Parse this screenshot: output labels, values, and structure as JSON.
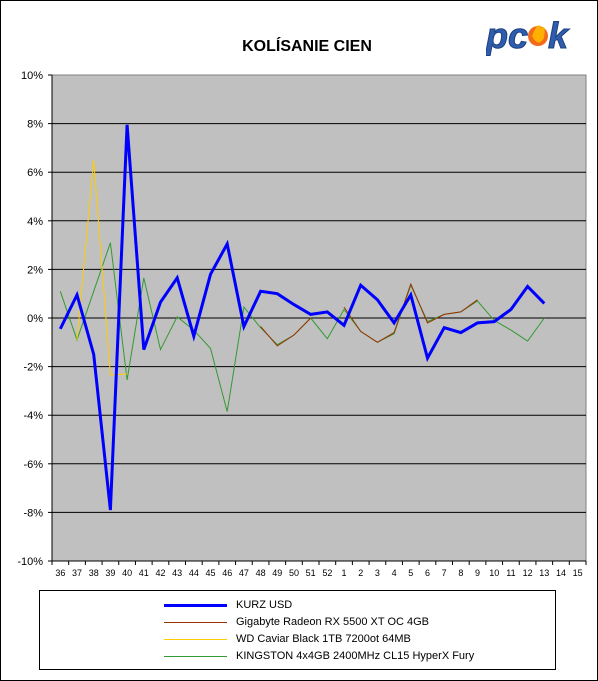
{
  "chart_data": {
    "type": "line",
    "title": "KOLÍSANIE CIEN",
    "ylim": [
      -10,
      10
    ],
    "yticks": [
      "10%",
      "8%",
      "6%",
      "4%",
      "2%",
      "0%",
      "-2%",
      "-4%",
      "-6%",
      "-8%",
      "-10%"
    ],
    "ytick_values": [
      10,
      8,
      6,
      4,
      2,
      0,
      -2,
      -4,
      -6,
      -8,
      -10
    ],
    "categories": [
      "36",
      "37",
      "38",
      "39",
      "40",
      "41",
      "42",
      "43",
      "44",
      "45",
      "46",
      "47",
      "48",
      "49",
      "50",
      "51",
      "52",
      "1",
      "2",
      "3",
      "4",
      "5",
      "6",
      "7",
      "8",
      "9",
      "10",
      "11",
      "12",
      "13",
      "14",
      "15"
    ],
    "grid": "horizontal",
    "legend_position": "bottom",
    "series": [
      {
        "name": "KURZ USD",
        "color": "#0000ff",
        "values": [
          -0.45,
          0.95,
          -1.5,
          -7.9,
          7.95,
          -1.3,
          0.65,
          1.65,
          -0.75,
          1.8,
          3.05,
          -0.35,
          1.1,
          1.0,
          0.55,
          0.15,
          0.25,
          -0.3,
          1.35,
          0.75,
          -0.2,
          0.95,
          -1.65,
          -0.4,
          -0.6,
          -0.2,
          -0.15,
          0.35,
          1.3,
          0.6,
          null,
          null
        ]
      },
      {
        "name": "Gigabyte Radeon RX 5500 XT OC 4GB",
        "color": "#993300",
        "values": [
          null,
          null,
          null,
          null,
          null,
          null,
          null,
          null,
          null,
          null,
          null,
          null,
          -0.35,
          -1.15,
          -0.7,
          0.0,
          null,
          0.45,
          -0.55,
          -1.0,
          -0.6,
          1.4,
          -0.2,
          0.15,
          0.25,
          0.75,
          null,
          null,
          null,
          null,
          null,
          null
        ]
      },
      {
        "name": "WD Caviar Black 1TB 7200ot 64MB",
        "color": "#ffcc00",
        "values": [
          null,
          -0.9,
          6.5,
          -2.35,
          -2.3,
          null,
          null,
          null,
          null,
          null,
          null,
          null,
          null,
          null,
          null,
          null,
          null,
          null,
          null,
          null,
          null,
          null,
          null,
          null,
          null,
          null,
          null,
          null,
          null,
          null,
          null,
          null
        ]
      },
      {
        "name": "KINGSTON 4x4GB 2400MHz CL15 HyperX Fury",
        "color": "#339933",
        "values": [
          1.1,
          -0.9,
          1.1,
          3.1,
          -2.55,
          1.65,
          -1.3,
          0.05,
          -0.5,
          -1.25,
          -3.85,
          0.45,
          -0.4,
          -1.1,
          -0.7,
          0.0,
          -0.85,
          0.35,
          -0.55,
          -1.0,
          -0.65,
          1.35,
          -0.15,
          0.15,
          0.25,
          0.7,
          -0.1,
          -0.5,
          -0.95,
          0.0,
          null,
          null
        ]
      }
    ]
  },
  "legend": {
    "items": [
      {
        "label": "KURZ USD",
        "color": "#0000ff"
      },
      {
        "label": "Gigabyte Radeon RX 5500 XT OC 4GB",
        "color": "#993300"
      },
      {
        "label": "WD Caviar Black 1TB 7200ot 64MB",
        "color": "#ffcc00"
      },
      {
        "label": "KINGSTON 4x4GB 2400MHz CL15 HyperX Fury",
        "color": "#339933"
      }
    ]
  },
  "logo": {
    "text": "pcsk"
  }
}
